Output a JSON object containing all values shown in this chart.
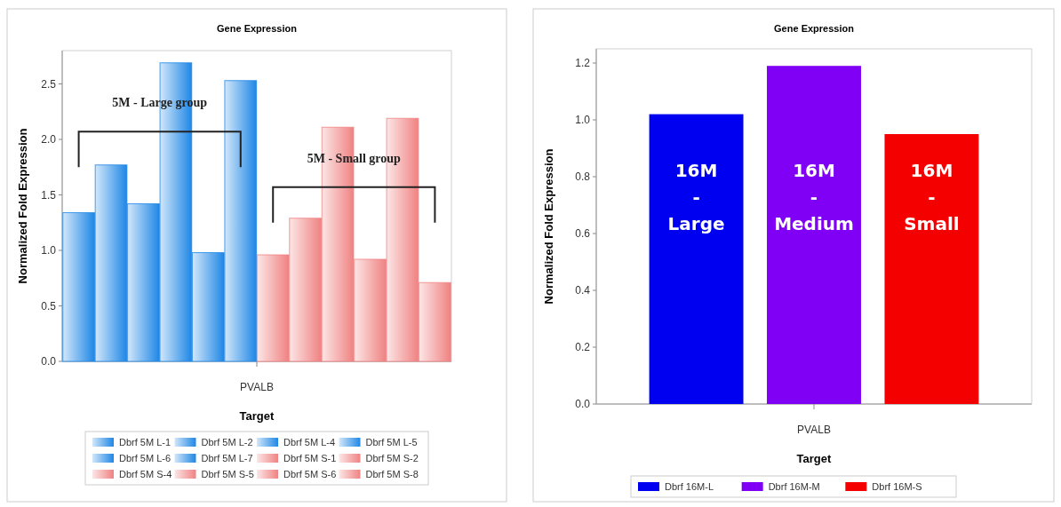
{
  "chart_data": [
    {
      "type": "bar",
      "title": "Gene Expression",
      "xlabel": "Target",
      "ylabel": "Normalized Fold Expression",
      "categories": [
        "PVALB"
      ],
      "series": [
        {
          "name": "Dbrf 5M L-1",
          "color": "#1f87e6",
          "values": [
            1.34
          ]
        },
        {
          "name": "Dbrf 5M L-2",
          "color": "#1f87e6",
          "values": [
            1.77
          ]
        },
        {
          "name": "Dbrf 5M L-4",
          "color": "#1f87e6",
          "values": [
            1.42
          ]
        },
        {
          "name": "Dbrf 5M L-5",
          "color": "#1f87e6",
          "values": [
            2.69
          ]
        },
        {
          "name": "Dbrf 5M L-6",
          "color": "#1f87e6",
          "values": [
            0.98
          ]
        },
        {
          "name": "Dbrf 5M L-7",
          "color": "#1f87e6",
          "values": [
            2.53
          ]
        },
        {
          "name": "Dbrf 5M S-1",
          "color": "#f08282",
          "values": [
            0.96
          ]
        },
        {
          "name": "Dbrf 5M S-2",
          "color": "#f08282",
          "values": [
            1.29
          ]
        },
        {
          "name": "Dbrf 5M S-4",
          "color": "#f08282",
          "values": [
            2.11
          ]
        },
        {
          "name": "Dbrf 5M S-5",
          "color": "#f08282",
          "values": [
            0.92
          ]
        },
        {
          "name": "Dbrf 5M S-6",
          "color": "#f08282",
          "values": [
            2.19
          ]
        },
        {
          "name": "Dbrf 5M S-8",
          "color": "#f08282",
          "values": [
            0.71
          ]
        }
      ],
      "ylim": [
        0,
        2.8
      ],
      "yticks": [
        {
          "value": 0,
          "label": "0.0"
        },
        {
          "value": 0.5,
          "label": "0.5"
        },
        {
          "value": 1,
          "label": "1.0"
        },
        {
          "value": 1.5,
          "label": "1.5"
        },
        {
          "value": 2,
          "label": "2.0"
        },
        {
          "value": 2.5,
          "label": "2.5"
        }
      ],
      "annotations": [
        "5M - Large group",
        "5M - Small group"
      ],
      "legend": "bottom",
      "grid": false
    },
    {
      "type": "bar",
      "title": "Gene Expression",
      "xlabel": "Target",
      "ylabel": "Normalized Fold Expression",
      "categories": [
        "PVALB"
      ],
      "series": [
        {
          "name": "Dbrf 16M-L",
          "color": "#0000f0",
          "values": [
            1.02
          ]
        },
        {
          "name": "Dbrf 16M-M",
          "color": "#7f00f5",
          "values": [
            1.19
          ]
        },
        {
          "name": "Dbrf 16M-S",
          "color": "#f50000",
          "values": [
            0.95
          ]
        }
      ],
      "ylim": [
        0,
        1.25
      ],
      "yticks": [
        {
          "value": 0,
          "label": "0.0"
        },
        {
          "value": 0.2,
          "label": "0.2"
        },
        {
          "value": 0.4,
          "label": "0.4"
        },
        {
          "value": 0.6,
          "label": "0.6"
        },
        {
          "value": 0.8,
          "label": "0.8"
        },
        {
          "value": 1,
          "label": "1.0"
        },
        {
          "value": 1.2,
          "label": "1.2"
        }
      ],
      "annotations": [
        "16M - Large",
        "16M - Medium",
        "16M - Small"
      ],
      "legend": "bottom",
      "grid": false
    }
  ]
}
